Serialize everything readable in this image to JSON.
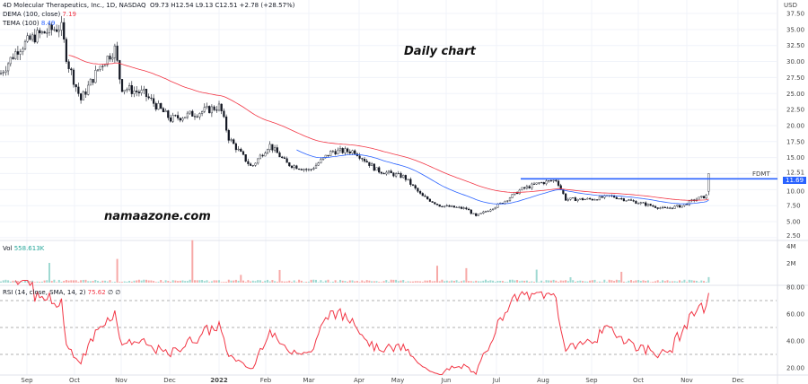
{
  "header": {
    "title": "4D Molecular Therapeutics, Inc., 1D, NASDAQ",
    "ohlc": "O9.73 H12.54 L9.13 C12.51 +2.78 (+28.57%)",
    "dema_label": "DEMA (100, close)",
    "dema_value": "7.19",
    "tema_label": "TEMA (100)",
    "tema_value": "8.49"
  },
  "annotations": {
    "daily": "Daily chart",
    "site": "namaazone.com",
    "ticker": "FDMT",
    "level": "11.69",
    "currency": "USD"
  },
  "volume": {
    "label": "Vol",
    "value": "558.613K"
  },
  "rsi": {
    "label": "RSI (14, close, SMA, 14, 2)",
    "value": "75.62",
    "extra": "∅ ∅"
  },
  "colors": {
    "up": "#26a69a",
    "down": "#ef5350",
    "dema": "#f23645",
    "tema": "#2962ff",
    "level": "#2962ff",
    "rsi": "#f23645"
  },
  "chart_data": {
    "type": "candlestick",
    "price_axis": {
      "ticks": [
        "37.50",
        "35.00",
        "32.50",
        "30.00",
        "27.50",
        "25.00",
        "22.50",
        "20.00",
        "17.50",
        "15.00",
        "12.51",
        "10.00",
        "7.50",
        "5.00",
        "2.50"
      ],
      "range": [
        2.5,
        37.5
      ]
    },
    "volume_axis": {
      "ticks": [
        "4M",
        "2M"
      ]
    },
    "rsi_axis": {
      "ticks": [
        "80.00",
        "60.00",
        "40.00",
        "20.00"
      ],
      "bands": [
        70,
        50,
        30
      ]
    },
    "x_ticks": [
      "Sep",
      "Oct",
      "Nov",
      "Dec",
      "2022",
      "Feb",
      "Mar",
      "Apr",
      "May",
      "Jun",
      "Jul",
      "Aug",
      "Sep",
      "Oct",
      "Nov",
      "Dec"
    ],
    "approx_close": [
      {
        "date": "2021-08-25",
        "close": 28
      },
      {
        "date": "2021-09-10",
        "close": 32
      },
      {
        "date": "2021-09-25",
        "close": 35.5
      },
      {
        "date": "2021-10-05",
        "close": 24
      },
      {
        "date": "2021-10-25",
        "close": 32
      },
      {
        "date": "2021-11-01",
        "close": 26
      },
      {
        "date": "2021-12-01",
        "close": 21
      },
      {
        "date": "2021-12-25",
        "close": 23
      },
      {
        "date": "2022-01-10",
        "close": 18
      },
      {
        "date": "2022-01-25",
        "close": 13.5
      },
      {
        "date": "2022-02-10",
        "close": 17
      },
      {
        "date": "2022-03-01",
        "close": 13
      },
      {
        "date": "2022-03-25",
        "close": 16
      },
      {
        "date": "2022-04-20",
        "close": 13
      },
      {
        "date": "2022-05-15",
        "close": 9
      },
      {
        "date": "2022-06-15",
        "close": 5.8
      },
      {
        "date": "2022-07-15",
        "close": 10
      },
      {
        "date": "2022-08-10",
        "close": 11.5
      },
      {
        "date": "2022-08-15",
        "close": 8.5
      },
      {
        "date": "2022-09-20",
        "close": 9
      },
      {
        "date": "2022-10-20",
        "close": 7
      },
      {
        "date": "2022-11-10",
        "close": 9
      },
      {
        "date": "2022-11-14",
        "close": 12.51
      }
    ],
    "horizontal_level": 11.69,
    "series": [
      {
        "name": "DEMA (100, close)",
        "last": 7.19
      },
      {
        "name": "TEMA (100)",
        "last": 8.49
      },
      {
        "name": "RSI (14, close, SMA, 14, 2)",
        "last": 75.62
      }
    ]
  }
}
